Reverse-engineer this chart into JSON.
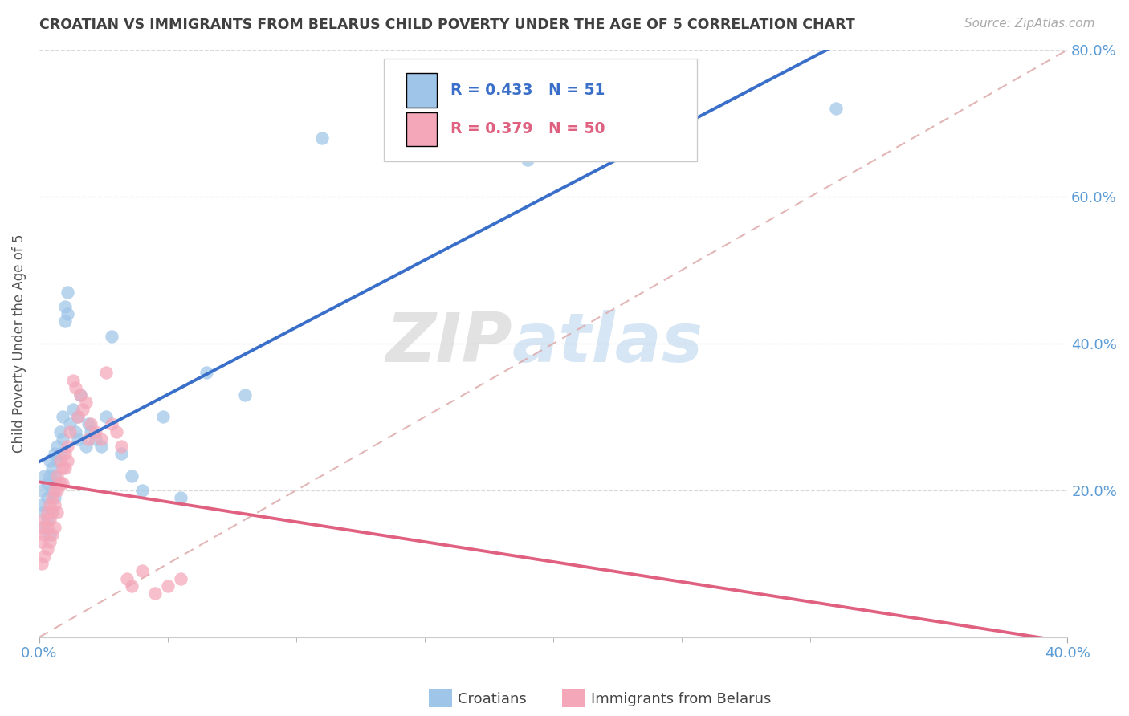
{
  "title": "CROATIAN VS IMMIGRANTS FROM BELARUS CHILD POVERTY UNDER THE AGE OF 5 CORRELATION CHART",
  "source": "Source: ZipAtlas.com",
  "ylabel": "Child Poverty Under the Age of 5",
  "xlim": [
    0.0,
    0.4
  ],
  "ylim": [
    0.0,
    0.8
  ],
  "xticks": [
    0.0,
    0.4
  ],
  "xticklabels": [
    "0.0%",
    "40.0%"
  ],
  "yticks": [
    0.0,
    0.2,
    0.4,
    0.6,
    0.8
  ],
  "yticklabels_right": [
    "",
    "20.0%",
    "40.0%",
    "60.0%",
    "80.0%"
  ],
  "series1_color": "#9fc5e8",
  "series2_color": "#f4a7b9",
  "line1_color": "#3a6fc9",
  "line2_color": "#e06080",
  "ref_line_color": "#f4a7b9",
  "R1": 0.433,
  "N1": 51,
  "R2": 0.379,
  "N2": 50,
  "legend_label1": "Croatians",
  "legend_label2": "Immigrants from Belarus",
  "watermark_zip": "ZIP",
  "watermark_atlas": "atlas",
  "title_color": "#404040",
  "tick_color": "#5b9bd5",
  "background_color": "#ffffff",
  "grid_color": "#d9d9d9",
  "croatians_x": [
    0.001,
    0.001,
    0.002,
    0.002,
    0.002,
    0.003,
    0.003,
    0.003,
    0.004,
    0.004,
    0.004,
    0.005,
    0.005,
    0.005,
    0.006,
    0.006,
    0.006,
    0.007,
    0.007,
    0.007,
    0.008,
    0.008,
    0.009,
    0.009,
    0.01,
    0.01,
    0.011,
    0.011,
    0.012,
    0.013,
    0.014,
    0.015,
    0.015,
    0.016,
    0.018,
    0.019,
    0.02,
    0.022,
    0.024,
    0.026,
    0.028,
    0.032,
    0.036,
    0.04,
    0.048,
    0.055,
    0.065,
    0.08,
    0.11,
    0.19,
    0.31
  ],
  "croatians_y": [
    0.2,
    0.18,
    0.22,
    0.17,
    0.15,
    0.21,
    0.19,
    0.16,
    0.24,
    0.22,
    0.14,
    0.23,
    0.2,
    0.17,
    0.25,
    0.22,
    0.19,
    0.26,
    0.24,
    0.21,
    0.28,
    0.25,
    0.3,
    0.27,
    0.43,
    0.45,
    0.47,
    0.44,
    0.29,
    0.31,
    0.28,
    0.3,
    0.27,
    0.33,
    0.26,
    0.29,
    0.28,
    0.27,
    0.26,
    0.3,
    0.41,
    0.25,
    0.22,
    0.2,
    0.3,
    0.19,
    0.36,
    0.33,
    0.68,
    0.65,
    0.72
  ],
  "belarus_x": [
    0.001,
    0.001,
    0.001,
    0.002,
    0.002,
    0.002,
    0.003,
    0.003,
    0.003,
    0.004,
    0.004,
    0.004,
    0.005,
    0.005,
    0.005,
    0.006,
    0.006,
    0.006,
    0.007,
    0.007,
    0.007,
    0.008,
    0.008,
    0.009,
    0.009,
    0.01,
    0.01,
    0.011,
    0.011,
    0.012,
    0.013,
    0.014,
    0.015,
    0.016,
    0.017,
    0.018,
    0.019,
    0.02,
    0.022,
    0.024,
    0.026,
    0.028,
    0.03,
    0.032,
    0.034,
    0.036,
    0.04,
    0.045,
    0.05,
    0.055
  ],
  "belarus_y": [
    0.15,
    0.13,
    0.1,
    0.16,
    0.14,
    0.11,
    0.17,
    0.15,
    0.12,
    0.18,
    0.16,
    0.13,
    0.19,
    0.17,
    0.14,
    0.2,
    0.18,
    0.15,
    0.22,
    0.2,
    0.17,
    0.24,
    0.21,
    0.23,
    0.21,
    0.25,
    0.23,
    0.26,
    0.24,
    0.28,
    0.35,
    0.34,
    0.3,
    0.33,
    0.31,
    0.32,
    0.27,
    0.29,
    0.28,
    0.27,
    0.36,
    0.29,
    0.28,
    0.26,
    0.08,
    0.07,
    0.09,
    0.06,
    0.07,
    0.08
  ]
}
